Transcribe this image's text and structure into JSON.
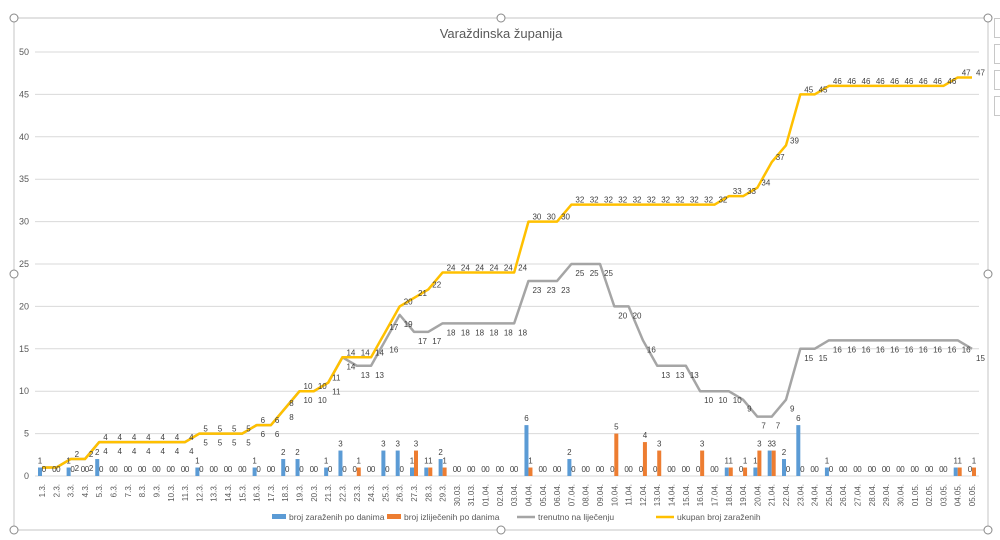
{
  "chart_data": {
    "type": "bar+line",
    "title": "Varaždinska županija",
    "ylim": [
      0,
      50
    ],
    "yticks": [
      0,
      5,
      10,
      15,
      20,
      25,
      30,
      35,
      40,
      45,
      50
    ],
    "grid": true,
    "legend_position": "bottom",
    "categories": [
      "1.3.",
      "2.3.",
      "3.3.",
      "4.3.",
      "5.3.",
      "6.3.",
      "7.3.",
      "8.3.",
      "9.3.",
      "10.3.",
      "11.3.",
      "12.3.",
      "13.3.",
      "14.3.",
      "15.3.",
      "16.3.",
      "17.3.",
      "18.3.",
      "19.3.",
      "20.3.",
      "21.3.",
      "22.3.",
      "23.3.",
      "24.3.",
      "25.3.",
      "26.3.",
      "27.3.",
      "28.3.",
      "29.3.",
      "30.03.",
      "31.03.",
      "01.04.",
      "02.04.",
      "03.04.",
      "04.04.",
      "05.04.",
      "06.04.",
      "07.04.",
      "08.04.",
      "09.04.",
      "10.04.",
      "11.04.",
      "12.04.",
      "13.04.",
      "14.04.",
      "15.04.",
      "16.04.",
      "17.04.",
      "18.04.",
      "19.04.",
      "20.04.",
      "21.04.",
      "22.04.",
      "23.04.",
      "24.04.",
      "25.04.",
      "26.04.",
      "27.04.",
      "28.04.",
      "29.04.",
      "30.04.",
      "01.05.",
      "02.05.",
      "03.05.",
      "04.05.",
      "05.05."
    ],
    "series": [
      {
        "name": "broj zaraženih po danima",
        "type": "bar",
        "color": "#5b9bd5",
        "values": [
          1,
          0,
          1,
          0,
          2,
          0,
          0,
          0,
          0,
          0,
          0,
          1,
          0,
          0,
          0,
          1,
          0,
          2,
          2,
          0,
          1,
          3,
          0,
          0,
          3,
          3,
          1,
          1,
          2,
          0,
          0,
          0,
          0,
          0,
          6,
          0,
          0,
          2,
          0,
          0,
          0,
          0,
          0,
          0,
          0,
          0,
          0,
          0,
          1,
          0,
          1,
          3,
          2,
          6,
          0,
          1,
          0,
          0,
          0,
          0,
          0,
          0,
          0,
          0,
          1,
          0
        ]
      },
      {
        "name": "broj izliječenih po danima",
        "type": "bar",
        "color": "#ed7d31",
        "values": [
          0,
          0,
          0,
          0,
          0,
          0,
          0,
          0,
          0,
          0,
          0,
          0,
          0,
          0,
          0,
          0,
          0,
          0,
          0,
          0,
          0,
          0,
          1,
          0,
          0,
          0,
          3,
          1,
          1,
          0,
          0,
          0,
          0,
          0,
          1,
          0,
          0,
          0,
          0,
          0,
          5,
          0,
          4,
          3,
          0,
          0,
          3,
          0,
          1,
          1,
          3,
          3,
          0,
          0,
          0,
          0,
          0,
          0,
          0,
          0,
          0,
          0,
          0,
          0,
          1,
          1
        ]
      },
      {
        "name": "trenutno na liječenju",
        "type": "line",
        "color": "#a5a5a5",
        "values": [
          1,
          1,
          2,
          2,
          4,
          4,
          4,
          4,
          4,
          4,
          4,
          5,
          5,
          5,
          5,
          6,
          6,
          8,
          10,
          10,
          11,
          14,
          13,
          13,
          16,
          19,
          17,
          17,
          18,
          18,
          18,
          18,
          18,
          18,
          23,
          23,
          23,
          25,
          25,
          25,
          20,
          20,
          16,
          13,
          13,
          13,
          10,
          10,
          10,
          9,
          7,
          7,
          9,
          15,
          15,
          16,
          16,
          16,
          16,
          16,
          16,
          16,
          16,
          16,
          16,
          15
        ]
      },
      {
        "name": "ukupan broj zaraženih",
        "type": "line",
        "color": "#ffc000",
        "values": [
          1,
          1,
          2,
          2,
          4,
          4,
          4,
          4,
          4,
          4,
          4,
          5,
          5,
          5,
          5,
          6,
          6,
          8,
          10,
          10,
          11,
          14,
          14,
          14,
          17,
          20,
          21,
          22,
          24,
          24,
          24,
          24,
          24,
          24,
          30,
          30,
          30,
          32,
          32,
          32,
          32,
          32,
          32,
          32,
          32,
          32,
          32,
          32,
          33,
          33,
          34,
          37,
          39,
          45,
          45,
          46,
          46,
          46,
          46,
          46,
          46,
          46,
          46,
          46,
          47,
          47
        ]
      }
    ]
  }
}
